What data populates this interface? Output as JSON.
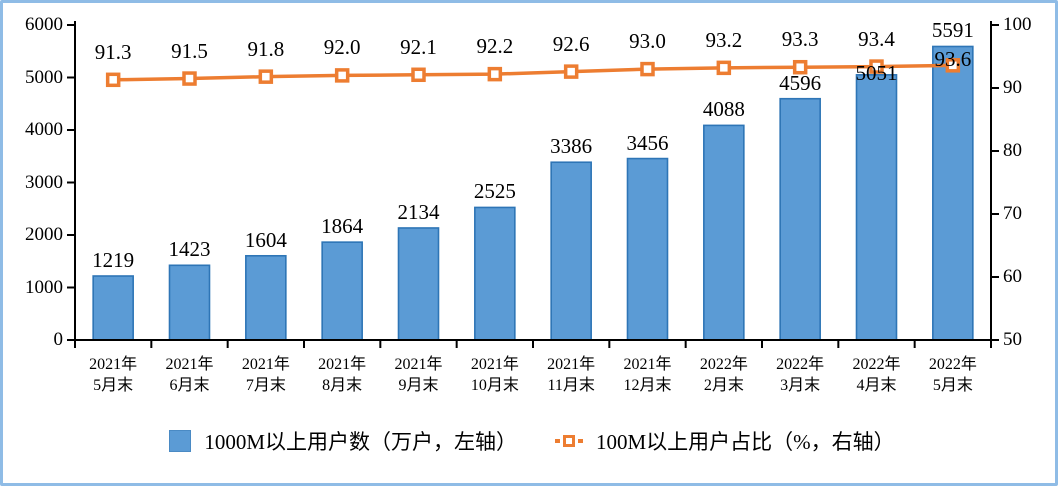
{
  "colors": {
    "bar_fill": "#5B9BD5",
    "bar_border": "#2E75B6",
    "line": "#ED7D31",
    "marker_fill": "#FFFFFF",
    "axis": "#000000",
    "text": "#000000",
    "frame_border": "#8FBCE6",
    "background": "#FFFFFF"
  },
  "chart_data": {
    "type": "bar+line combo",
    "title": "",
    "grid": false,
    "legend_position": "bottom",
    "categories": [
      "2021年\n5月末",
      "2021年\n6月末",
      "2021年\n7月末",
      "2021年\n8月末",
      "2021年\n9月末",
      "2021年\n10月末",
      "2021年\n11月末",
      "2021年\n12月末",
      "2022年\n2月末",
      "2022年\n3月末",
      "2022年\n4月末",
      "2022年\n5月末"
    ],
    "series": [
      {
        "name": "1000M以上用户数（万户，左轴）",
        "type": "bar",
        "axis": "left",
        "values": [
          1219,
          1423,
          1604,
          1864,
          2134,
          2525,
          3386,
          3456,
          4088,
          4596,
          5051,
          5591
        ],
        "data_labels": [
          "1219",
          "1423",
          "1604",
          "1864",
          "2134",
          "2525",
          "3386",
          "3456",
          "4088",
          "4596",
          "5051",
          "5591"
        ]
      },
      {
        "name": "100M以上用户占比（%，右轴）",
        "type": "line",
        "axis": "right",
        "marker": "hollow-square",
        "values": [
          91.3,
          91.5,
          91.8,
          92.0,
          92.1,
          92.2,
          92.6,
          93.0,
          93.2,
          93.3,
          93.4,
          93.6
        ],
        "data_labels": [
          "91.3",
          "91.5",
          "91.8",
          "92.0",
          "92.1",
          "92.2",
          "92.6",
          "93.0",
          "93.2",
          "93.3",
          "93.4",
          "93.6"
        ]
      }
    ],
    "left_axis": {
      "min": 0,
      "max": 6000,
      "step": 1000,
      "tick_labels": [
        "0",
        "1000",
        "2000",
        "3000",
        "4000",
        "5000",
        "6000"
      ]
    },
    "right_axis": {
      "min": 50,
      "max": 100,
      "step": 10,
      "tick_labels": [
        "50",
        "60",
        "70",
        "80",
        "90",
        "100"
      ]
    },
    "label_offsets": {
      "bar_label_dy": [
        0,
        0,
        0,
        0,
        0,
        0,
        0,
        0,
        0,
        0,
        14,
        0
      ],
      "line_label_dy": [
        0,
        0,
        0,
        0,
        0,
        0,
        0,
        0,
        0,
        0,
        0,
        22
      ]
    }
  }
}
